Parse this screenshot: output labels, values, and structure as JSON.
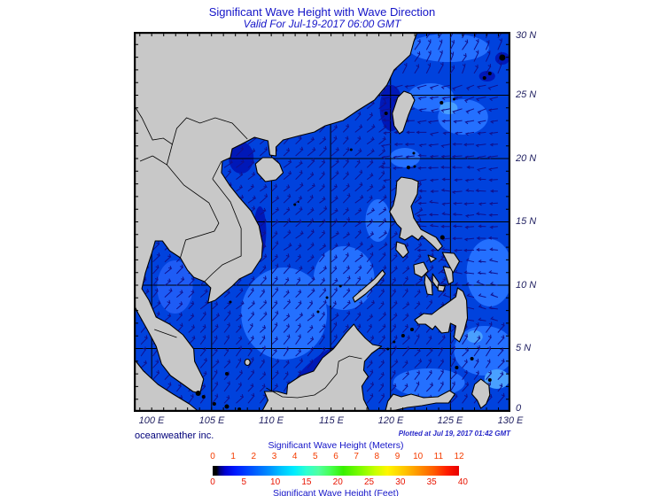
{
  "header": {
    "title": "Significant Wave Height with Wave Direction",
    "subtitle": "Valid For Jul-19-2017 06:00 GMT"
  },
  "map": {
    "lat_labels": [
      "30 N",
      "25 N",
      "20 N",
      "15 N",
      "10 N",
      "5 N",
      "0"
    ],
    "lon_labels": [
      "100 E",
      "105 E",
      "110 E",
      "115 E",
      "120 E",
      "125 E",
      "130 E"
    ]
  },
  "credits": {
    "provider": "oceanweather inc.",
    "plotted": "Plotted at Jul 19, 2017 01:42 GMT"
  },
  "legend": {
    "meters_title": "Significant Wave Height (Meters)",
    "feet_title": "Significant Wave Height (Feet)",
    "meters_ticks": [
      "0",
      "1",
      "2",
      "3",
      "4",
      "5",
      "6",
      "7",
      "8",
      "9",
      "10",
      "11",
      "12"
    ],
    "feet_ticks": [
      "0",
      "5",
      "10",
      "15",
      "20",
      "25",
      "30",
      "35",
      "40"
    ]
  },
  "colors": {
    "sea_base": "#0042dd",
    "sea_light": "#2470ff",
    "sea_bright": "#49a0ff",
    "sea_dark": "#0018b8",
    "land": "#c8c8c8",
    "arrow": "#10108c",
    "title_blue": "#1414c8",
    "meters_tick_color": "#f43c00",
    "feet_tick_color": "#e81400"
  },
  "chart_data": {
    "type": "heatmap",
    "title": "Significant Wave Height with Wave Direction",
    "valid_time": "Jul-19-2017 06:00 GMT",
    "plotted_time": "Jul 19, 2017 01:42 GMT",
    "region_extent": {
      "lon": [
        "100 E",
        "130 E"
      ],
      "lat": [
        "0",
        "30 N"
      ]
    },
    "colorbar": {
      "palette": "jet-with-black-minimum",
      "meters_scale": [
        0,
        1,
        2,
        3,
        4,
        5,
        6,
        7,
        8,
        9,
        10,
        11,
        12
      ],
      "feet_scale": [
        0,
        5,
        10,
        15,
        20,
        25,
        30,
        35,
        40
      ]
    },
    "depicted_conditions": {
      "south_china_sea_arrows": "northeastward (southwest monsoon)",
      "pacific_east_of_philippines_arrows": "westward",
      "southeast_corner_arrows": "northeastward",
      "wave_height_range_shown_m": [
        0.5,
        2.5
      ]
    }
  }
}
